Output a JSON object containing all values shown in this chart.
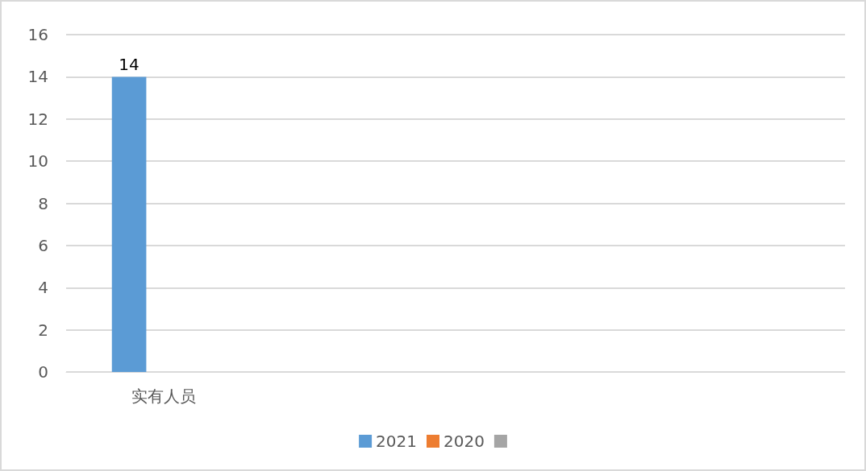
{
  "chart_data": {
    "type": "bar",
    "categories": [
      "实有人员",
      null,
      null,
      null
    ],
    "series": [
      {
        "name": "2021",
        "color": "#5b9bd5",
        "values": [
          14,
          null,
          null,
          null
        ],
        "value_labels": [
          "14",
          null,
          null,
          null
        ]
      },
      {
        "name": "2020",
        "color": "#ed7d31",
        "values": [
          0,
          null,
          null,
          null
        ]
      },
      {
        "color": "#a5a5a5",
        "values": [
          0,
          null,
          null,
          null
        ]
      }
    ],
    "ylim": [
      0,
      16
    ],
    "yticks": [
      0,
      2,
      4,
      6,
      8,
      10,
      12,
      14,
      16
    ],
    "grid": "y",
    "legend": "bottom"
  }
}
